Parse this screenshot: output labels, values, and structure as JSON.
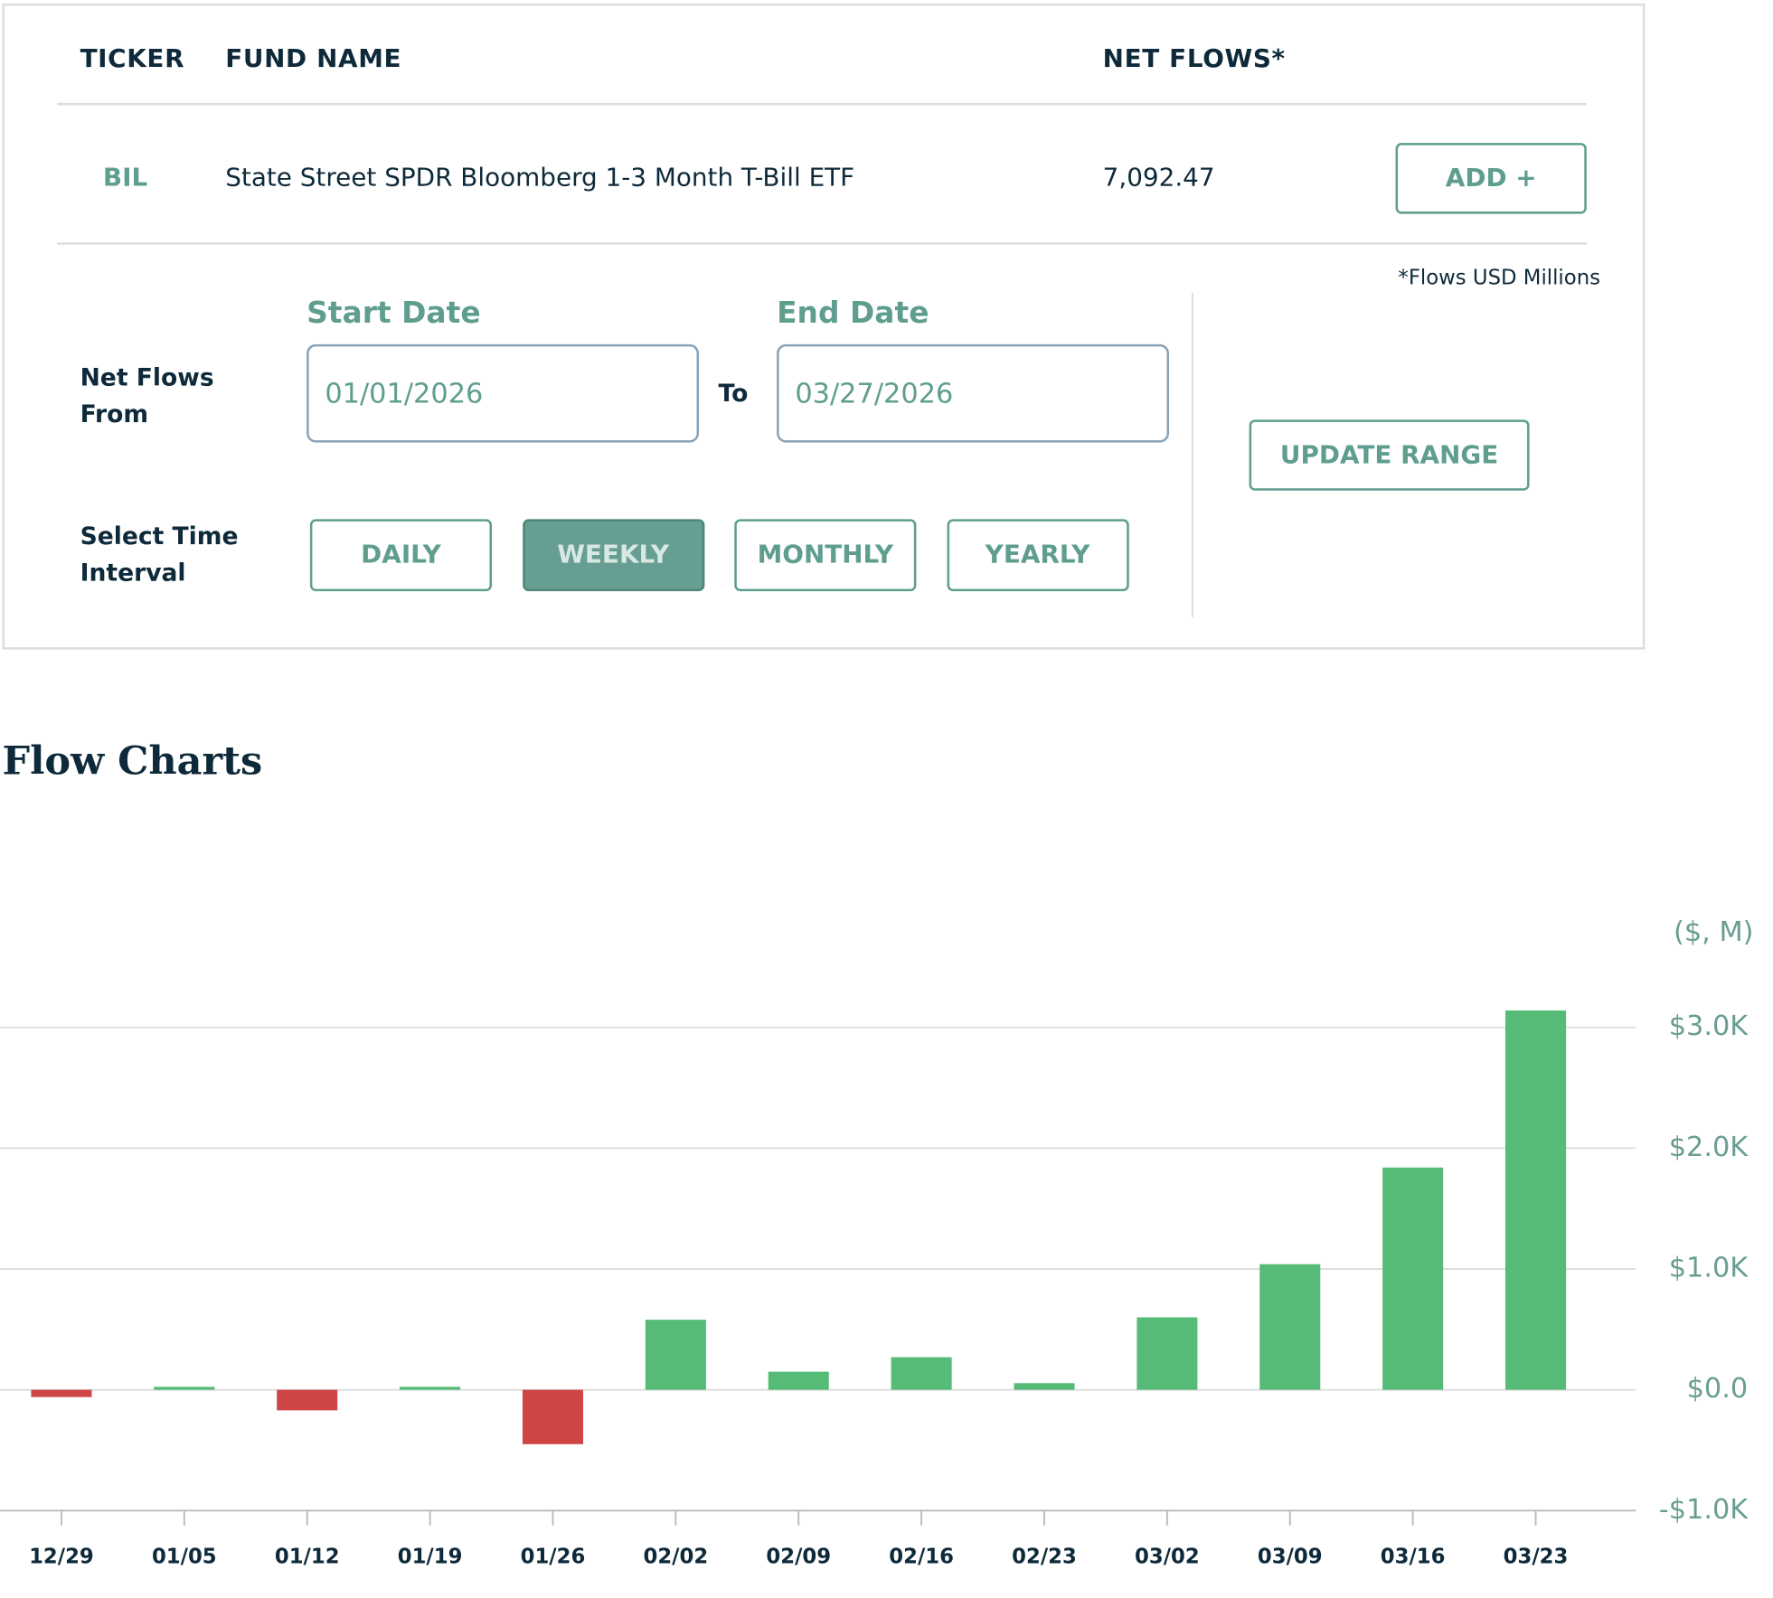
{
  "table": {
    "headers": [
      "TICKER",
      "FUND NAME",
      "NET FLOWS*"
    ],
    "rows": [
      [
        "BIL",
        "State Street SPDR Bloomberg 1-3 Month T-Bill ETF",
        "7,092.47"
      ]
    ],
    "add_button": "ADD +",
    "footnote": "*Flows USD Millions"
  },
  "filters": {
    "range_label": "Net Flows From",
    "start_label": "Start Date",
    "start_value": "01/01/2026",
    "to": "To",
    "end_label": "End Date",
    "end_value": "03/27/2026",
    "update_button": "UPDATE RANGE",
    "interval_label": "Select Time Interval",
    "intervals": [
      "DAILY",
      "WEEKLY",
      "MONTHLY",
      "YEARLY"
    ],
    "active_interval": "WEEKLY"
  },
  "section_title": "Flow Charts",
  "chart_data": {
    "type": "bar",
    "y_unit_label": "($, M)",
    "categories": [
      "12/29",
      "01/05",
      "01/12",
      "01/19",
      "01/26",
      "02/02",
      "02/09",
      "02/16",
      "02/23",
      "03/02",
      "03/09",
      "03/16",
      "03/23"
    ],
    "values": [
      -60,
      25,
      -170,
      25,
      -450,
      580,
      150,
      270,
      55,
      600,
      1040,
      1840,
      3140
    ],
    "positive_color": "#57bb78",
    "negative_color": "#cf4444",
    "ylim": [
      -1000,
      3250
    ],
    "yticks": [
      {
        "value": -1000,
        "label": "-$1.0K"
      },
      {
        "value": 0,
        "label": "$0.0"
      },
      {
        "value": 1000,
        "label": "$1.0K"
      },
      {
        "value": 2000,
        "label": "$2.0K"
      },
      {
        "value": 3000,
        "label": "$3.0K"
      }
    ],
    "grid": true
  }
}
